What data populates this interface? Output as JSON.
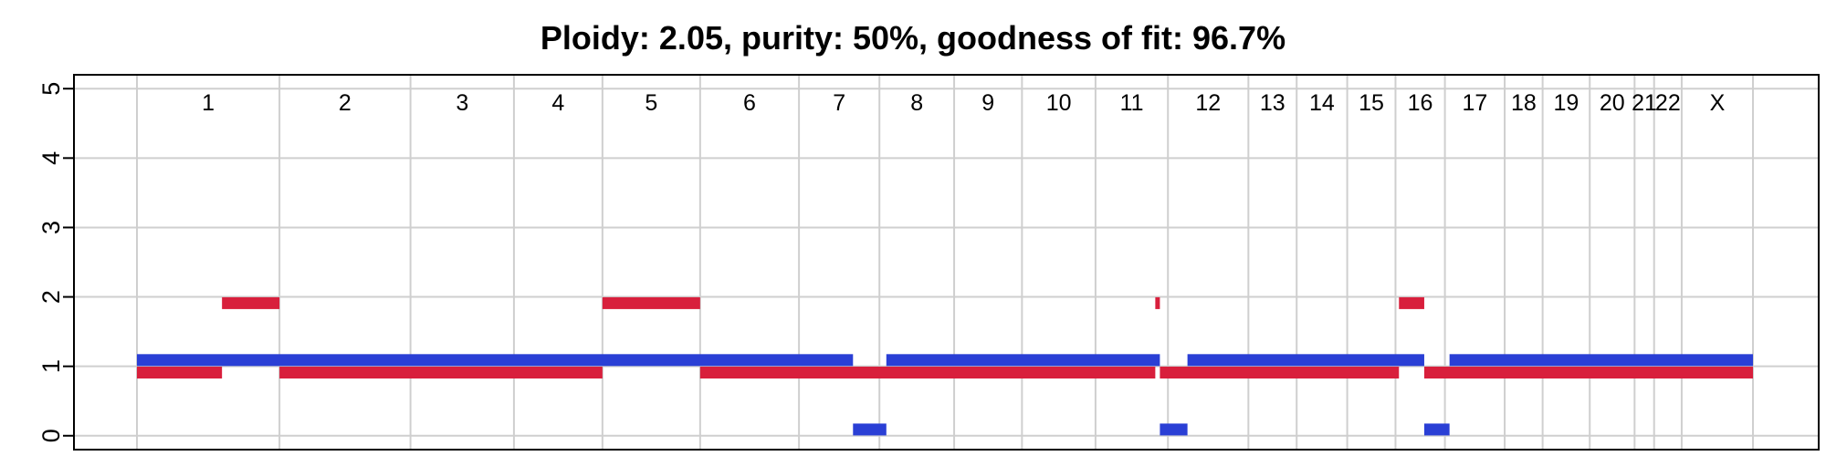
{
  "chart_data": {
    "type": "segment",
    "title": "Ploidy: 2.05, purity: 50%, goodness of fit: 96.7%",
    "xlabel": "",
    "ylabel": "",
    "ylim": [
      -0.2,
      5.2
    ],
    "y_ticks": [
      "0",
      "1",
      "2",
      "3",
      "4",
      "5"
    ],
    "grid": true,
    "colors": {
      "major": "#2a3fd5",
      "minor": "#d81f3c",
      "grid": "#cfcfcf"
    },
    "chromosomes": [
      {
        "label": "1",
        "start": 0,
        "end": 248
      },
      {
        "label": "2",
        "start": 248,
        "end": 476
      },
      {
        "label": "3",
        "start": 476,
        "end": 656
      },
      {
        "label": "4",
        "start": 656,
        "end": 810
      },
      {
        "label": "5",
        "start": 810,
        "end": 980
      },
      {
        "label": "6",
        "start": 980,
        "end": 1152
      },
      {
        "label": "7",
        "start": 1152,
        "end": 1292
      },
      {
        "label": "8",
        "start": 1292,
        "end": 1422
      },
      {
        "label": "9",
        "start": 1422,
        "end": 1540
      },
      {
        "label": "10",
        "start": 1540,
        "end": 1668
      },
      {
        "label": "11",
        "start": 1668,
        "end": 1794
      },
      {
        "label": "12",
        "start": 1794,
        "end": 1934
      },
      {
        "label": "13",
        "start": 1934,
        "end": 2018
      },
      {
        "label": "14",
        "start": 2018,
        "end": 2106
      },
      {
        "label": "15",
        "start": 2106,
        "end": 2190
      },
      {
        "label": "16",
        "start": 2190,
        "end": 2276
      },
      {
        "label": "17",
        "start": 2276,
        "end": 2380
      },
      {
        "label": "18",
        "start": 2380,
        "end": 2446
      },
      {
        "label": "19",
        "start": 2446,
        "end": 2528
      },
      {
        "label": "20",
        "start": 2528,
        "end": 2606
      },
      {
        "label": "21",
        "start": 2606,
        "end": 2640
      },
      {
        "label": "22",
        "start": 2640,
        "end": 2688
      },
      {
        "label": "X",
        "start": 2688,
        "end": 2812
      }
    ],
    "series": [
      {
        "role": "major",
        "segments": [
          {
            "start": 0,
            "end": 1246,
            "cn": 1
          },
          {
            "start": 1246,
            "end": 1304,
            "cn": 0
          },
          {
            "start": 1304,
            "end": 1780,
            "cn": 1
          },
          {
            "start": 1780,
            "end": 1828,
            "cn": 0
          },
          {
            "start": 1828,
            "end": 2240,
            "cn": 1
          },
          {
            "start": 2240,
            "end": 2284,
            "cn": 0
          },
          {
            "start": 2284,
            "end": 2812,
            "cn": 1
          }
        ]
      },
      {
        "role": "minor",
        "segments": [
          {
            "start": 0,
            "end": 148,
            "cn": 1
          },
          {
            "start": 148,
            "end": 248,
            "cn": 2
          },
          {
            "start": 248,
            "end": 810,
            "cn": 1
          },
          {
            "start": 810,
            "end": 980,
            "cn": 2
          },
          {
            "start": 980,
            "end": 1772,
            "cn": 1
          },
          {
            "start": 1772,
            "end": 1780,
            "cn": 2
          },
          {
            "start": 1780,
            "end": 2196,
            "cn": 1
          },
          {
            "start": 2196,
            "end": 2240,
            "cn": 2
          },
          {
            "start": 2240,
            "end": 2812,
            "cn": 1
          }
        ]
      }
    ]
  }
}
